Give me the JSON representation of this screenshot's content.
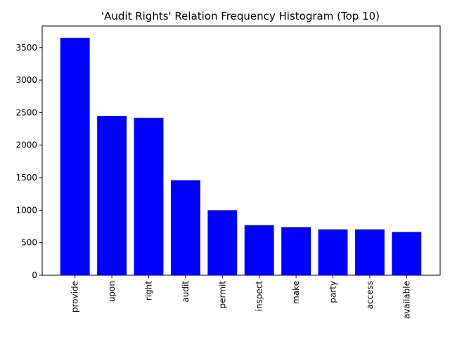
{
  "chart_data": {
    "type": "bar",
    "title": "'Audit Rights' Relation Frequency Histogram (Top 10)",
    "xlabel": "",
    "ylabel": "",
    "categories": [
      "provide",
      "upon",
      "right",
      "audit",
      "permit",
      "inspect",
      "make",
      "party",
      "access",
      "available"
    ],
    "values": [
      3650,
      2450,
      2420,
      1460,
      1000,
      770,
      740,
      705,
      705,
      665
    ],
    "ylim": [
      0,
      3832
    ],
    "yticks": [
      0,
      500,
      1000,
      1500,
      2000,
      2500,
      3000,
      3500
    ],
    "bar_color": "#0000ff",
    "grid": false,
    "legend": "none"
  }
}
